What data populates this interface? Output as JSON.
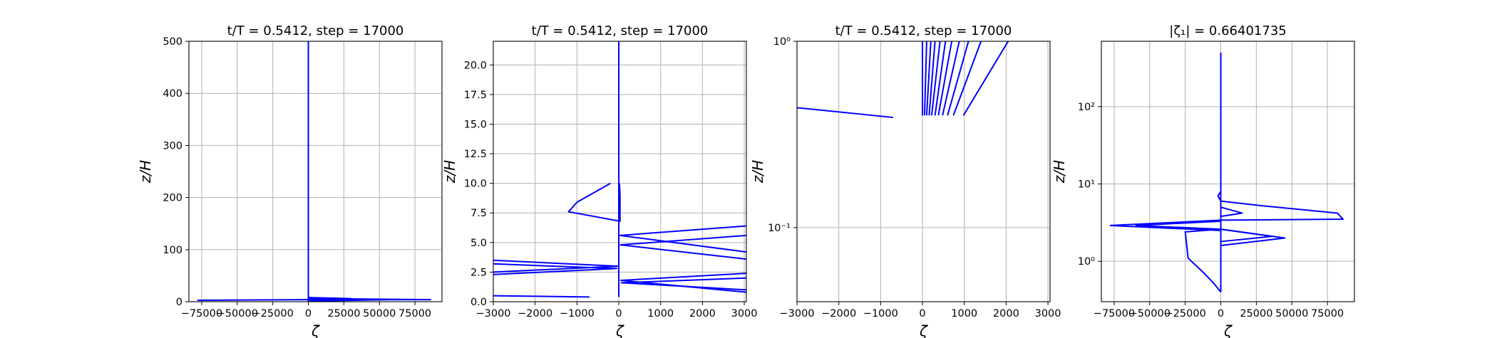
{
  "chart_data": [
    {
      "type": "line",
      "title": "t/T = 0.5412, step = 17000",
      "xlabel": "ζ",
      "ylabel": "z/H",
      "xscale": "linear",
      "yscale": "linear",
      "xlim": [
        -84000,
        94000
      ],
      "ylim": [
        0,
        500
      ],
      "xticks": [
        -75000,
        -50000,
        -25000,
        0,
        25000,
        50000,
        75000
      ],
      "xticklabels": [
        "−75000",
        "−50000",
        "−25000",
        "0",
        "25000",
        "50000",
        "75000"
      ],
      "yticks": [
        0,
        100,
        200,
        300,
        400,
        500
      ],
      "yticklabels": [
        "0",
        "100",
        "200",
        "300",
        "400",
        "500"
      ],
      "grid": true,
      "color": "#0000ff",
      "series": [
        {
          "x": [
            0,
            0
          ],
          "y": [
            0.4,
            500
          ]
        },
        {
          "x": [
            0,
            0,
            55000
          ],
          "y": [
            0.5,
            1,
            4
          ]
        },
        {
          "x": [
            -78000,
            0,
            86000,
            0
          ],
          "y": [
            2.8,
            4,
            4,
            6
          ]
        },
        {
          "x": [
            0,
            30000,
            0
          ],
          "y": [
            5,
            6,
            8
          ]
        }
      ]
    },
    {
      "type": "line",
      "title": "t/T = 0.5412, step = 17000",
      "xlabel": "ζ",
      "ylabel": "z/H",
      "xscale": "linear",
      "yscale": "linear",
      "xlim": [
        -3000,
        3050
      ],
      "ylim": [
        0,
        22
      ],
      "xticks": [
        -3000,
        -2000,
        -1000,
        0,
        1000,
        2000,
        3000
      ],
      "xticklabels": [
        "−3000",
        "−2000",
        "−1000",
        "0",
        "1000",
        "2000",
        "3000"
      ],
      "yticks": [
        0,
        2.5,
        5,
        7.5,
        10,
        12.5,
        15,
        17.5,
        20
      ],
      "yticklabels": [
        "0.0",
        "2.5",
        "5.0",
        "7.5",
        "10.0",
        "12.5",
        "15.0",
        "17.5",
        "20.0"
      ],
      "grid": true,
      "color": "#0000ff",
      "series": [
        {
          "x": [
            -3000,
            -700
          ],
          "y": [
            0.5,
            0.4
          ]
        },
        {
          "x": [
            0,
            0
          ],
          "y": [
            0.4,
            22
          ]
        },
        {
          "x": [
            -200,
            -1000,
            -1200,
            30,
            30,
            15
          ],
          "y": [
            10,
            8.4,
            7.6,
            6.8,
            9,
            10
          ]
        },
        {
          "x": [
            -3000,
            0,
            -3000
          ],
          "y": [
            3.5,
            3.0,
            2.5
          ]
        },
        {
          "x": [
            -3000,
            -50,
            -3000
          ],
          "y": [
            3.2,
            2.8,
            2.3
          ]
        },
        {
          "x": [
            3050,
            30,
            3050
          ],
          "y": [
            6.4,
            5.6,
            4.2
          ]
        },
        {
          "x": [
            3050,
            40,
            3050
          ],
          "y": [
            5.6,
            4.8,
            3.6
          ]
        },
        {
          "x": [
            3050,
            50,
            3050
          ],
          "y": [
            2.4,
            1.8,
            0.8
          ]
        },
        {
          "x": [
            3050,
            60,
            3050
          ],
          "y": [
            2.0,
            1.6,
            1.0
          ]
        }
      ]
    },
    {
      "type": "line",
      "title": "t/T = 0.5412, step = 17000",
      "xlabel": "ζ",
      "ylabel": "z/H",
      "xscale": "linear",
      "yscale": "log",
      "xlim": [
        -3000,
        3050
      ],
      "ylim": [
        0.04,
        1
      ],
      "xticks": [
        -3000,
        -2000,
        -1000,
        0,
        1000,
        2000,
        3000
      ],
      "xticklabels": [
        "−3000",
        "−2000",
        "−1000",
        "0",
        "1000",
        "2000",
        "3000"
      ],
      "ytickvalues": [
        0.1,
        1
      ],
      "yticklabels": [
        "10⁻¹",
        "10⁰"
      ],
      "grid": true,
      "color": "#0000ff",
      "series": [
        {
          "x": [
            -3000,
            -700
          ],
          "y": [
            0.44,
            0.39
          ]
        },
        {
          "x": [
            0,
            0
          ],
          "y": [
            0.4,
            1
          ]
        },
        {
          "x": [
            50,
            100
          ],
          "y": [
            0.4,
            1
          ]
        },
        {
          "x": [
            100,
            200
          ],
          "y": [
            0.4,
            1
          ]
        },
        {
          "x": [
            160,
            300
          ],
          "y": [
            0.4,
            1
          ]
        },
        {
          "x": [
            220,
            420
          ],
          "y": [
            0.4,
            1
          ]
        },
        {
          "x": [
            300,
            550
          ],
          "y": [
            0.4,
            1
          ]
        },
        {
          "x": [
            380,
            700
          ],
          "y": [
            0.4,
            1
          ]
        },
        {
          "x": [
            480,
            880
          ],
          "y": [
            0.4,
            1
          ]
        },
        {
          "x": [
            600,
            1100
          ],
          "y": [
            0.4,
            1
          ]
        },
        {
          "x": [
            740,
            1400
          ],
          "y": [
            0.4,
            1
          ]
        },
        {
          "x": [
            980,
            2050
          ],
          "y": [
            0.4,
            1
          ]
        }
      ]
    },
    {
      "type": "line",
      "title": "|ζ₁| = 0.66401735",
      "xlabel": "ζ",
      "ylabel": "z/H",
      "xscale": "linear",
      "yscale": "log",
      "xlim": [
        -84000,
        94000
      ],
      "ylim": [
        0.3,
        700
      ],
      "xticks": [
        -75000,
        -50000,
        -25000,
        0,
        25000,
        50000,
        75000
      ],
      "xticklabels": [
        "−75000",
        "−50000",
        "−25000",
        "0",
        "25000",
        "50000",
        "75000"
      ],
      "ytickvalues": [
        1,
        10,
        100
      ],
      "yticklabels": [
        "10⁰",
        "10¹",
        "10²"
      ],
      "grid": true,
      "color": "#0000ff",
      "series": [
        {
          "x": [
            0,
            0
          ],
          "y": [
            0.4,
            500
          ]
        },
        {
          "x": [
            0,
            -5000,
            -11000,
            -23000,
            -25000,
            0
          ],
          "y": [
            0.4,
            0.52,
            0.68,
            1.1,
            2.4,
            2.6
          ]
        },
        {
          "x": [
            0,
            45000,
            0
          ],
          "y": [
            2.6,
            2.0,
            1.6
          ]
        },
        {
          "x": [
            0,
            36000,
            0
          ],
          "y": [
            2.6,
            2.1,
            1.8
          ]
        },
        {
          "x": [
            -78000,
            0
          ],
          "y": [
            2.9,
            3.4
          ]
        },
        {
          "x": [
            -78000,
            0
          ],
          "y": [
            2.9,
            2.5
          ]
        },
        {
          "x": [
            -60000,
            0
          ],
          "y": [
            2.9,
            3.3
          ]
        },
        {
          "x": [
            -60000,
            0
          ],
          "y": [
            2.9,
            2.6
          ]
        },
        {
          "x": [
            0,
            86000,
            82000,
            30000,
            0,
            -2000,
            0
          ],
          "y": [
            3.4,
            3.5,
            4.2,
            5.2,
            6.0,
            7.0,
            8.0
          ]
        },
        {
          "x": [
            0,
            15000,
            0
          ],
          "y": [
            5.0,
            4.2,
            3.8
          ]
        }
      ]
    }
  ]
}
